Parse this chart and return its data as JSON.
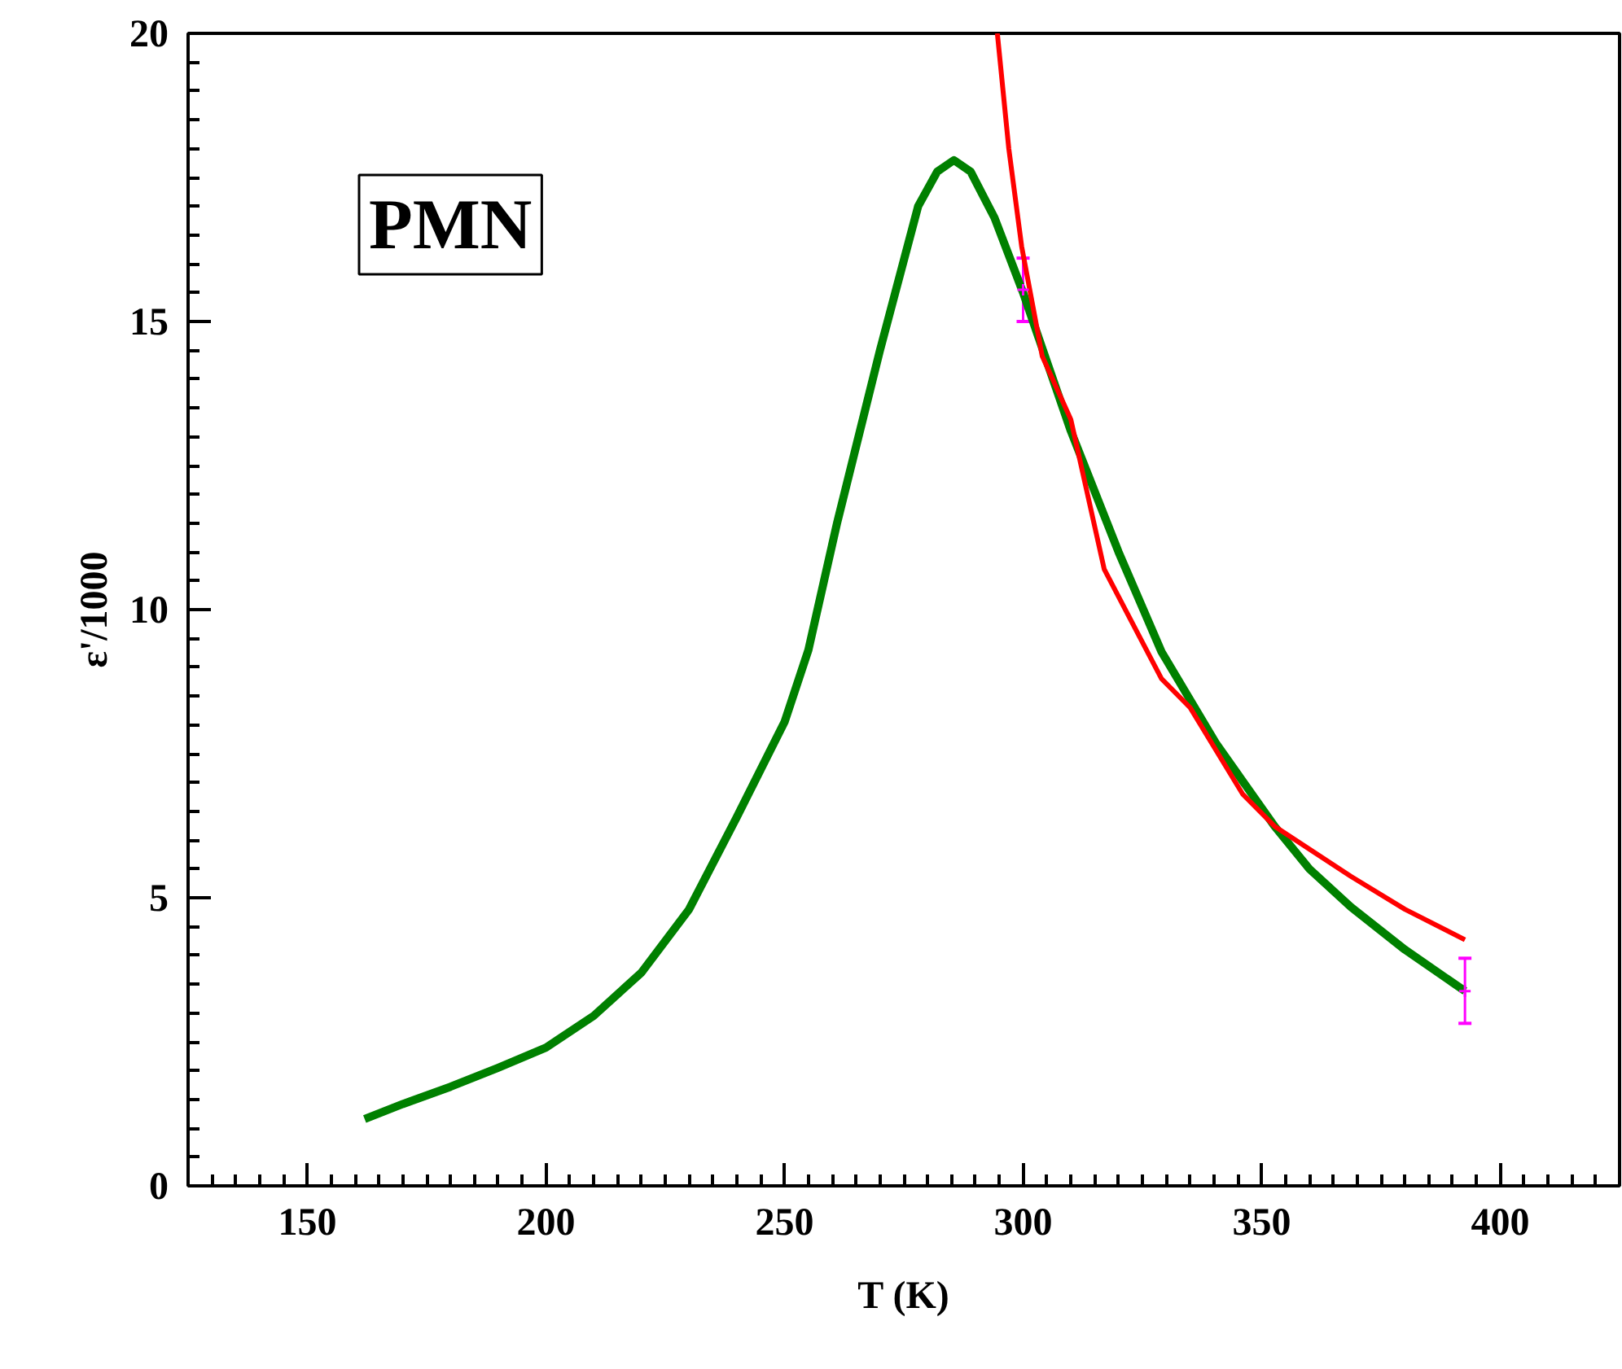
{
  "chart_data": {
    "type": "line",
    "xlabel": "T (K)",
    "ylabel": "ε'/1000",
    "annotations": [
      "PMN"
    ],
    "xlim": [
      125,
      425
    ],
    "xticks": [
      150,
      200,
      250,
      300,
      350,
      400
    ],
    "ylim": [
      0,
      20
    ],
    "yticks": [
      0,
      5,
      10,
      15,
      20
    ],
    "grid": false,
    "line_style": "solid",
    "series": [
      {
        "color": "#008000",
        "x": [
          162,
          170,
          180,
          190,
          200,
          210,
          220,
          230,
          240,
          250,
          255,
          261,
          270,
          278,
          282,
          285.5,
          289,
          294,
          300,
          305,
          310,
          320,
          329,
          340.5,
          352.7,
          360,
          368.7,
          380,
          392.6
        ],
        "values": [
          1.16,
          1.42,
          1.72,
          2.05,
          2.4,
          2.95,
          3.7,
          4.8,
          6.4,
          8.05,
          9.3,
          11.5,
          14.5,
          17.0,
          17.6,
          17.8,
          17.6,
          16.8,
          15.5,
          14.3,
          13.1,
          11.0,
          9.27,
          7.67,
          6.24,
          5.5,
          4.84,
          4.1,
          3.38
        ]
      },
      {
        "color": "#ff0000",
        "x": [
          294.6,
          297,
          299.7,
          304,
          310,
          317,
          329,
          335,
          346,
          352.7,
          368.7,
          380,
          392.6
        ],
        "values": [
          20,
          18,
          16.3,
          14.4,
          13.3,
          10.7,
          8.8,
          8.3,
          6.8,
          6.24,
          5.37,
          4.8,
          4.27
        ]
      },
      {
        "type": "scatter",
        "marker": "cross",
        "color": "#ff00ff",
        "x": [
          300,
          392.6
        ],
        "values": [
          15.55,
          3.38
        ],
        "errors": [
          [
            15.0,
            16.1
          ],
          [
            2.82,
            3.95
          ]
        ]
      }
    ]
  }
}
